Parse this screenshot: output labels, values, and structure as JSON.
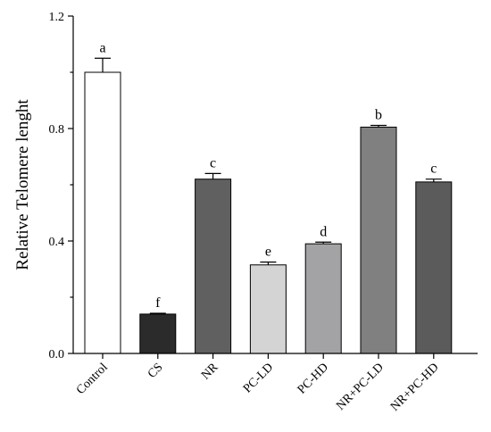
{
  "chart_data": {
    "type": "bar",
    "title": "",
    "xlabel": "",
    "ylabel": "Relative Telomere lenght",
    "ylim": [
      0,
      1.2
    ],
    "yticks": [
      "0.0",
      "0.4",
      "0.8",
      "1.2"
    ],
    "grid": false,
    "categories": [
      "Control",
      "CS",
      "NR",
      "PC-LD",
      "PC-HD",
      "NR+PC-LD",
      "NR+PC-HD"
    ],
    "values": [
      1.0,
      0.14,
      0.62,
      0.315,
      0.39,
      0.805,
      0.61
    ],
    "errors": [
      0.05,
      0.003,
      0.02,
      0.01,
      0.006,
      0.006,
      0.01
    ],
    "significance": [
      "a",
      "f",
      "c",
      "e",
      "d",
      "b",
      "c"
    ],
    "colors": [
      "#ffffff",
      "#2b2b2b",
      "#606060",
      "#d4d4d4",
      "#a3a3a5",
      "#808080",
      "#5b5b5b"
    ]
  }
}
